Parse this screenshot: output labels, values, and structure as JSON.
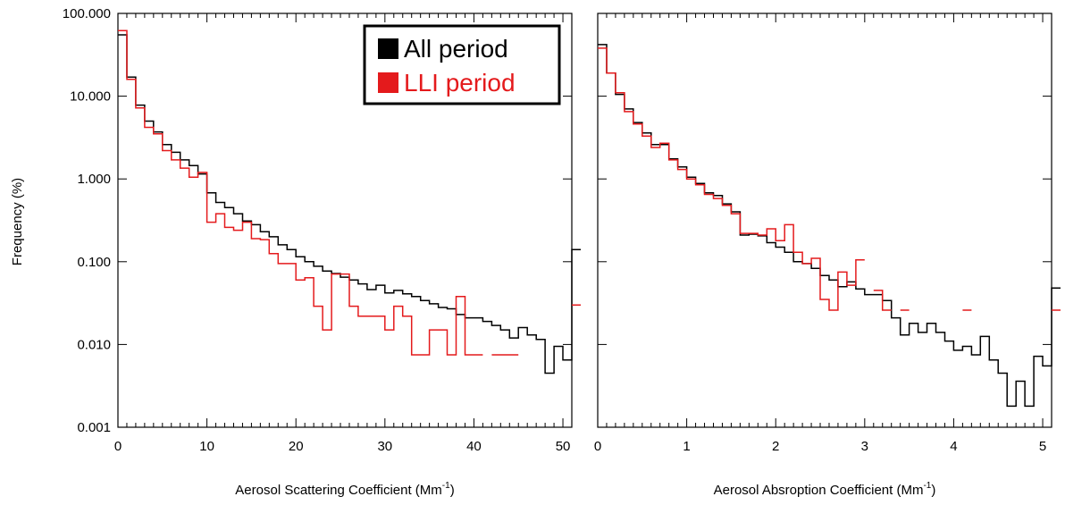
{
  "figure": {
    "ylabel": "Frequency (%)",
    "y_tick_labels": [
      "100.000",
      "10.000",
      "1.000",
      "0.100",
      "0.010",
      "0.001"
    ],
    "legend": {
      "all_label": "All period",
      "lli_label": "LLI period"
    },
    "colors": {
      "all": "#000000",
      "lli": "#e41a1c"
    }
  },
  "chart_data": [
    {
      "type": "line",
      "step": "histogram",
      "xlabel": "Aerosol Scattering Coefficient (Mm",
      "xlabel_sup": "-1",
      "xlabel_close": ")",
      "xlim": [
        0,
        51
      ],
      "ylim": [
        0.001,
        100
      ],
      "yscale": "log",
      "x_ticks": [
        0,
        10,
        20,
        30,
        40,
        50
      ],
      "x_tick_labels": [
        "0",
        "10",
        "20",
        "30",
        "40",
        "50"
      ],
      "legend_position": "top-right",
      "series": [
        {
          "name": "All period",
          "color": "#000000",
          "bin_width": 1,
          "x_start": 0,
          "values": [
            55,
            17,
            7.8,
            5,
            3.7,
            2.6,
            2.1,
            1.7,
            1.45,
            1.15,
            0.68,
            0.52,
            0.45,
            0.38,
            0.31,
            0.28,
            0.23,
            0.2,
            0.16,
            0.14,
            0.115,
            0.1,
            0.088,
            0.077,
            0.072,
            0.065,
            0.06,
            0.054,
            0.046,
            0.052,
            0.042,
            0.045,
            0.041,
            0.038,
            0.034,
            0.031,
            0.028,
            0.027,
            0.023,
            0.021,
            0.021,
            0.019,
            0.017,
            0.015,
            0.012,
            0.016,
            0.013,
            0.0115,
            0.0045,
            0.0095,
            0.0065,
            0.14
          ]
        },
        {
          "name": "LLI period",
          "color": "#e41a1c",
          "bin_width": 1,
          "x_start": 0,
          "values": [
            62,
            16,
            7.2,
            4.2,
            3.5,
            2.2,
            1.7,
            1.35,
            1.05,
            1.2,
            0.3,
            0.38,
            0.26,
            0.24,
            0.3,
            0.19,
            0.185,
            0.125,
            0.095,
            0.095,
            0.06,
            0.064,
            0.029,
            0.015,
            0.071,
            0.071,
            0.029,
            0.022,
            0.022,
            0.022,
            0.015,
            0.029,
            0.022,
            0.0075,
            0.0075,
            0.015,
            0.015,
            0.0075,
            0.038,
            0.0075,
            0.0075,
            null,
            0.0075,
            0.0075,
            0.0075,
            null,
            null,
            null,
            null,
            null,
            null,
            0.03
          ]
        }
      ]
    },
    {
      "type": "line",
      "step": "histogram",
      "xlabel": "Aerosol Absroption Coefficient (Mm",
      "xlabel_sup": "-1",
      "xlabel_close": ")",
      "xlim": [
        0,
        5.1
      ],
      "ylim": [
        0.001,
        100
      ],
      "yscale": "log",
      "x_ticks": [
        0,
        1,
        2,
        3,
        4,
        5
      ],
      "x_tick_labels": [
        "0",
        "1",
        "2",
        "3",
        "4",
        "5"
      ],
      "series": [
        {
          "name": "All period",
          "color": "#000000",
          "bin_width": 0.1,
          "x_start": 0,
          "values": [
            42,
            19,
            10.5,
            7,
            4.8,
            3.6,
            2.6,
            2.6,
            1.75,
            1.4,
            1.05,
            0.88,
            0.68,
            0.63,
            0.5,
            0.4,
            0.21,
            0.215,
            0.205,
            0.17,
            0.15,
            0.13,
            0.1,
            0.095,
            0.083,
            0.068,
            0.06,
            0.05,
            0.057,
            0.047,
            0.04,
            0.04,
            0.034,
            0.021,
            0.013,
            0.018,
            0.014,
            0.018,
            0.014,
            0.011,
            0.0085,
            0.0095,
            0.0075,
            0.0125,
            0.0065,
            0.0045,
            0.0018,
            0.0036,
            0.0018,
            0.0072,
            0.0055,
            0.048
          ]
        },
        {
          "name": "LLI period",
          "color": "#e41a1c",
          "bin_width": 0.1,
          "x_start": 0,
          "values": [
            38,
            19,
            11,
            6.5,
            4.6,
            3.3,
            2.4,
            2.7,
            1.7,
            1.3,
            1,
            0.85,
            0.65,
            0.58,
            0.48,
            0.38,
            0.22,
            0.22,
            0.21,
            0.25,
            0.18,
            0.28,
            0.13,
            0.095,
            0.11,
            0.035,
            0.026,
            0.075,
            0.052,
            0.105,
            null,
            0.045,
            0.026,
            null,
            0.026,
            null,
            null,
            null,
            null,
            null,
            null,
            0.026,
            null,
            null,
            null,
            null,
            null,
            null,
            null,
            null,
            null,
            0.026
          ]
        }
      ]
    }
  ]
}
